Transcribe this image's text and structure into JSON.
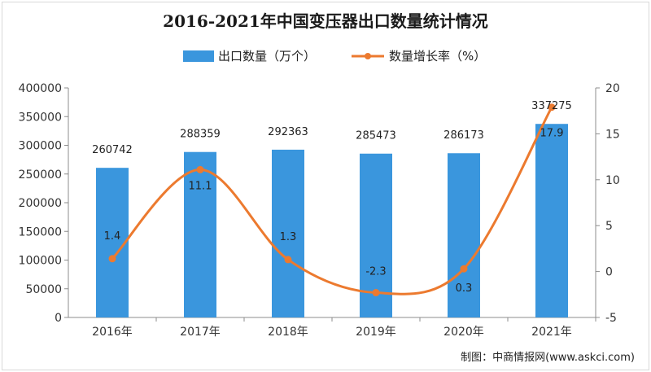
{
  "chart_data": {
    "type": "bar+line",
    "title": "2016-2021年中国变压器出口数量统计情况",
    "categories": [
      "2016年",
      "2017年",
      "2018年",
      "2019年",
      "2020年",
      "2021年"
    ],
    "series": [
      {
        "name": "出口数量（万个）",
        "type": "bar",
        "axis": "left",
        "color": "#3a96dd",
        "values": [
          260742,
          288359,
          292363,
          285473,
          286173,
          337275
        ],
        "labels": [
          "260742",
          "288359",
          "292363",
          "285473",
          "286173",
          "337275"
        ]
      },
      {
        "name": "数量增长率（%）",
        "type": "line",
        "axis": "right",
        "color": "#ec7a2f",
        "values": [
          1.4,
          11.1,
          1.3,
          -2.3,
          0.3,
          17.9
        ],
        "labels": [
          "1.4",
          "11.1",
          "1.3",
          "-2.3",
          "0.3",
          "17.9"
        ]
      }
    ],
    "y_left": {
      "ylim": [
        0,
        400000
      ],
      "ticks": [
        "0",
        "50000",
        "100000",
        "150000",
        "200000",
        "250000",
        "300000",
        "350000",
        "400000"
      ]
    },
    "y_right": {
      "ylim": [
        -5,
        20
      ],
      "ticks": [
        "-5",
        "0",
        "5",
        "10",
        "15",
        "20"
      ]
    },
    "legend": "top-center",
    "grid": false
  },
  "source": "制图：中商情报网(www.askci.com)"
}
